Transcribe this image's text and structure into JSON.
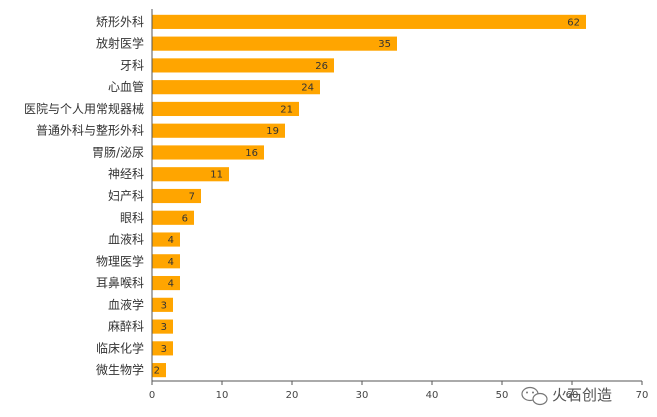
{
  "chart_data": {
    "type": "bar",
    "orientation": "horizontal",
    "categories": [
      "矫形外科",
      "放射医学",
      "牙科",
      "心血管",
      "医院与个人用常规器械",
      "普通外科与整形外科",
      "胃肠/泌尿",
      "神经科",
      "妇产科",
      "眼科",
      "血液科",
      "物理医学",
      "耳鼻喉科",
      "血液学",
      "麻醉科",
      "临床化学",
      "微生物学"
    ],
    "values": [
      62,
      35,
      26,
      24,
      21,
      19,
      16,
      11,
      7,
      6,
      4,
      4,
      4,
      3,
      3,
      3,
      2
    ],
    "xlim": [
      0,
      70
    ],
    "xticks": [
      0,
      10,
      20,
      30,
      40,
      50,
      60,
      70
    ],
    "bar_color": "#FFA500",
    "grid": false,
    "legend": "none"
  },
  "watermark": {
    "text": "火石创造"
  }
}
